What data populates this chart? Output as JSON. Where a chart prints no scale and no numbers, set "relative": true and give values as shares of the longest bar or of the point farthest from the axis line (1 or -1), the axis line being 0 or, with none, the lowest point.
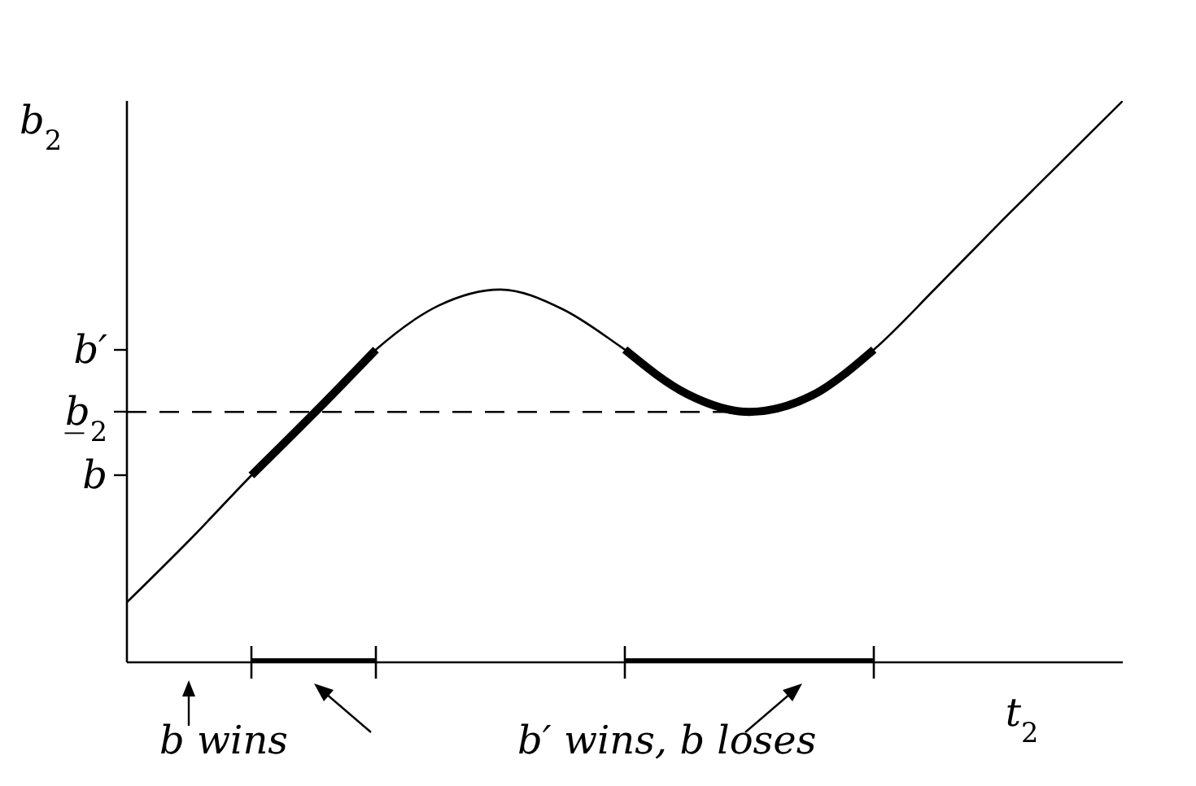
{
  "chart_data": {
    "type": "line",
    "relative": true,
    "xlabel": "t$_{2}$",
    "ylabel": "b$_{2}$",
    "categories": [
      null,
      null,
      null,
      null,
      null,
      null,
      null,
      null,
      null,
      null,
      null,
      null,
      null,
      null,
      null,
      null,
      null
    ],
    "series": [
      {
        "color": "#000000",
        "values": [
          0.107,
          0.217,
          0.333,
          0.443,
          0.557,
          0.635,
          0.664,
          0.629,
          0.557,
          0.478,
          0.446,
          0.475,
          0.557,
          0.667,
          0.78,
          0.89,
          1
        ]
      },
      {
        "color": "#000000",
        "values": [
          null,
          null,
          0.333,
          0.443,
          0.557,
          null,
          null,
          null,
          0.557,
          0.478,
          0.446,
          0.475,
          0.557,
          null,
          null,
          null,
          null
        ]
      },
      {
        "color": "#000000",
        "values": [
          null,
          null,
          0,
          0,
          0,
          null,
          null,
          null,
          0,
          0,
          0,
          0,
          0,
          null,
          null,
          null,
          null
        ]
      },
      {
        "color": "#000000",
        "line_style": "dashed",
        "values": [
          0.446,
          0.446,
          0.446,
          0.446,
          0.446,
          0.446,
          0.446,
          0.446,
          0.446,
          0.446,
          0.446,
          null,
          null,
          null,
          null,
          null,
          null
        ]
      }
    ],
    "annotations": [
      "b′",
      "b̲$_{2}$",
      "b",
      "b wins",
      "b′ wins, b loses"
    ]
  }
}
